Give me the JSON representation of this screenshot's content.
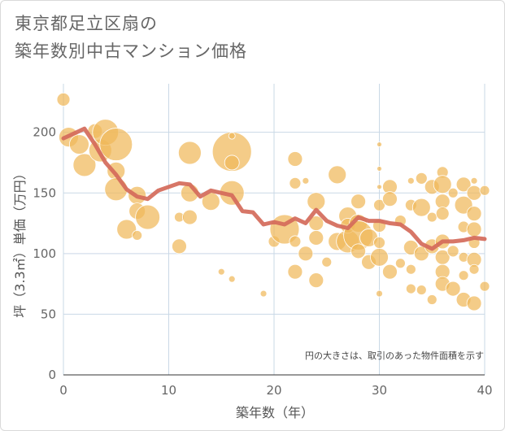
{
  "title_lines": [
    "東京都足立区扇の",
    "築年数別中古マンション価格"
  ],
  "chart_data": {
    "type": "scatter",
    "title": "東京都足立区扇の築年数別中古マンション価格",
    "xlabel": "築年数（年）",
    "ylabel": "坪（3.3㎡）単価（万円）",
    "xlim": [
      0,
      40
    ],
    "ylim": [
      0,
      240
    ],
    "xticks": [
      0,
      10,
      20,
      30,
      40
    ],
    "yticks": [
      0,
      50,
      100,
      150,
      200
    ],
    "grid": true,
    "note": "円の大きさは、取引のあった物件面積を示す",
    "bubble_color": "#f0b85a",
    "line_color": "#d46a5a",
    "bubbles": [
      {
        "x": 0,
        "y": 227,
        "s": 8
      },
      {
        "x": 0.5,
        "y": 196,
        "s": 12
      },
      {
        "x": 1.5,
        "y": 190,
        "s": 12
      },
      {
        "x": 2,
        "y": 173,
        "s": 14
      },
      {
        "x": 3,
        "y": 201,
        "s": 9
      },
      {
        "x": 3.5,
        "y": 185,
        "s": 14
      },
      {
        "x": 4,
        "y": 200,
        "s": 16
      },
      {
        "x": 5,
        "y": 190,
        "s": 20
      },
      {
        "x": 5,
        "y": 168,
        "s": 11
      },
      {
        "x": 5,
        "y": 153,
        "s": 14
      },
      {
        "x": 6,
        "y": 120,
        "s": 12
      },
      {
        "x": 7,
        "y": 148,
        "s": 11
      },
      {
        "x": 7,
        "y": 135,
        "s": 10
      },
      {
        "x": 7,
        "y": 115,
        "s": 6
      },
      {
        "x": 8,
        "y": 130,
        "s": 15
      },
      {
        "x": 11,
        "y": 130,
        "s": 6
      },
      {
        "x": 11,
        "y": 106,
        "s": 9
      },
      {
        "x": 12,
        "y": 150,
        "s": 11
      },
      {
        "x": 12,
        "y": 130,
        "s": 9
      },
      {
        "x": 12,
        "y": 183,
        "s": 14
      },
      {
        "x": 14,
        "y": 143,
        "s": 11
      },
      {
        "x": 15,
        "y": 85,
        "s": 4
      },
      {
        "x": 16,
        "y": 184,
        "s": 24
      },
      {
        "x": 16,
        "y": 175,
        "s": 9
      },
      {
        "x": 16,
        "y": 150,
        "s": 15
      },
      {
        "x": 16,
        "y": 197,
        "s": 4
      },
      {
        "x": 16,
        "y": 79,
        "s": 4
      },
      {
        "x": 19,
        "y": 67,
        "s": 4
      },
      {
        "x": 20,
        "y": 110,
        "s": 7
      },
      {
        "x": 21,
        "y": 120,
        "s": 18
      },
      {
        "x": 22,
        "y": 178,
        "s": 9
      },
      {
        "x": 22,
        "y": 158,
        "s": 7
      },
      {
        "x": 22,
        "y": 110,
        "s": 7
      },
      {
        "x": 22,
        "y": 85,
        "s": 9
      },
      {
        "x": 23,
        "y": 160,
        "s": 4
      },
      {
        "x": 23,
        "y": 100,
        "s": 9
      },
      {
        "x": 24,
        "y": 143,
        "s": 11
      },
      {
        "x": 24,
        "y": 125,
        "s": 9
      },
      {
        "x": 24,
        "y": 113,
        "s": 9
      },
      {
        "x": 24,
        "y": 78,
        "s": 9
      },
      {
        "x": 25,
        "y": 93,
        "s": 6
      },
      {
        "x": 26,
        "y": 165,
        "s": 11
      },
      {
        "x": 26,
        "y": 110,
        "s": 11
      },
      {
        "x": 27,
        "y": 131,
        "s": 11
      },
      {
        "x": 27,
        "y": 110,
        "s": 14
      },
      {
        "x": 27,
        "y": 123,
        "s": 9
      },
      {
        "x": 28,
        "y": 143,
        "s": 9
      },
      {
        "x": 28,
        "y": 125,
        "s": 11
      },
      {
        "x": 28,
        "y": 115,
        "s": 18
      },
      {
        "x": 28,
        "y": 102,
        "s": 9
      },
      {
        "x": 29,
        "y": 113,
        "s": 11
      },
      {
        "x": 29,
        "y": 93,
        "s": 9
      },
      {
        "x": 30,
        "y": 190,
        "s": 3
      },
      {
        "x": 30,
        "y": 170,
        "s": 3
      },
      {
        "x": 30,
        "y": 155,
        "s": 3
      },
      {
        "x": 30,
        "y": 140,
        "s": 7
      },
      {
        "x": 30,
        "y": 123,
        "s": 8
      },
      {
        "x": 30,
        "y": 109,
        "s": 7
      },
      {
        "x": 30,
        "y": 97,
        "s": 11
      },
      {
        "x": 30,
        "y": 67,
        "s": 4
      },
      {
        "x": 31,
        "y": 155,
        "s": 9
      },
      {
        "x": 31,
        "y": 145,
        "s": 9
      },
      {
        "x": 31,
        "y": 85,
        "s": 9
      },
      {
        "x": 32,
        "y": 127,
        "s": 7
      },
      {
        "x": 32,
        "y": 92,
        "s": 6
      },
      {
        "x": 33,
        "y": 160,
        "s": 4
      },
      {
        "x": 33,
        "y": 140,
        "s": 7
      },
      {
        "x": 33,
        "y": 105,
        "s": 9
      },
      {
        "x": 33,
        "y": 87,
        "s": 6
      },
      {
        "x": 33,
        "y": 71,
        "s": 6
      },
      {
        "x": 34,
        "y": 162,
        "s": 7
      },
      {
        "x": 34,
        "y": 138,
        "s": 11
      },
      {
        "x": 34,
        "y": 100,
        "s": 9
      },
      {
        "x": 34,
        "y": 70,
        "s": 6
      },
      {
        "x": 35,
        "y": 155,
        "s": 9
      },
      {
        "x": 35,
        "y": 130,
        "s": 6
      },
      {
        "x": 35,
        "y": 106,
        "s": 9
      },
      {
        "x": 35,
        "y": 62,
        "s": 6
      },
      {
        "x": 36,
        "y": 167,
        "s": 7
      },
      {
        "x": 36,
        "y": 157,
        "s": 11
      },
      {
        "x": 36,
        "y": 143,
        "s": 9
      },
      {
        "x": 36,
        "y": 133,
        "s": 8
      },
      {
        "x": 36,
        "y": 110,
        "s": 9
      },
      {
        "x": 36,
        "y": 97,
        "s": 9
      },
      {
        "x": 36,
        "y": 85,
        "s": 9
      },
      {
        "x": 36,
        "y": 75,
        "s": 9
      },
      {
        "x": 37,
        "y": 150,
        "s": 6
      },
      {
        "x": 37,
        "y": 102,
        "s": 7
      },
      {
        "x": 37,
        "y": 71,
        "s": 9
      },
      {
        "x": 38,
        "y": 157,
        "s": 9
      },
      {
        "x": 38,
        "y": 140,
        "s": 11
      },
      {
        "x": 38,
        "y": 122,
        "s": 7
      },
      {
        "x": 38,
        "y": 97,
        "s": 6
      },
      {
        "x": 38,
        "y": 82,
        "s": 6
      },
      {
        "x": 38,
        "y": 62,
        "s": 9
      },
      {
        "x": 39,
        "y": 160,
        "s": 4
      },
      {
        "x": 39,
        "y": 150,
        "s": 9
      },
      {
        "x": 39,
        "y": 133,
        "s": 9
      },
      {
        "x": 39,
        "y": 120,
        "s": 9
      },
      {
        "x": 39,
        "y": 109,
        "s": 7
      },
      {
        "x": 39,
        "y": 95,
        "s": 9
      },
      {
        "x": 39,
        "y": 87,
        "s": 6
      },
      {
        "x": 39,
        "y": 59,
        "s": 9
      },
      {
        "x": 40,
        "y": 152,
        "s": 6
      },
      {
        "x": 40,
        "y": 73,
        "s": 6
      }
    ],
    "series": [
      {
        "x": [
          0,
          1,
          2,
          3,
          4,
          5,
          6,
          7,
          8,
          9,
          10,
          11,
          12,
          13,
          14,
          15,
          16,
          17,
          18,
          19,
          20,
          21,
          22,
          23,
          24,
          25,
          26,
          27,
          28,
          29,
          30,
          31,
          32,
          33,
          34,
          35,
          36,
          37,
          38,
          39,
          40
        ],
        "y": [
          195,
          199,
          203,
          190,
          175,
          165,
          153,
          147,
          145,
          152,
          155,
          158,
          157,
          147,
          152,
          150,
          148,
          135,
          134,
          124,
          126,
          124,
          129,
          125,
          136,
          127,
          123,
          121,
          130,
          127,
          127,
          125,
          124,
          118,
          108,
          104,
          110,
          110,
          111,
          113,
          112
        ]
      }
    ]
  }
}
